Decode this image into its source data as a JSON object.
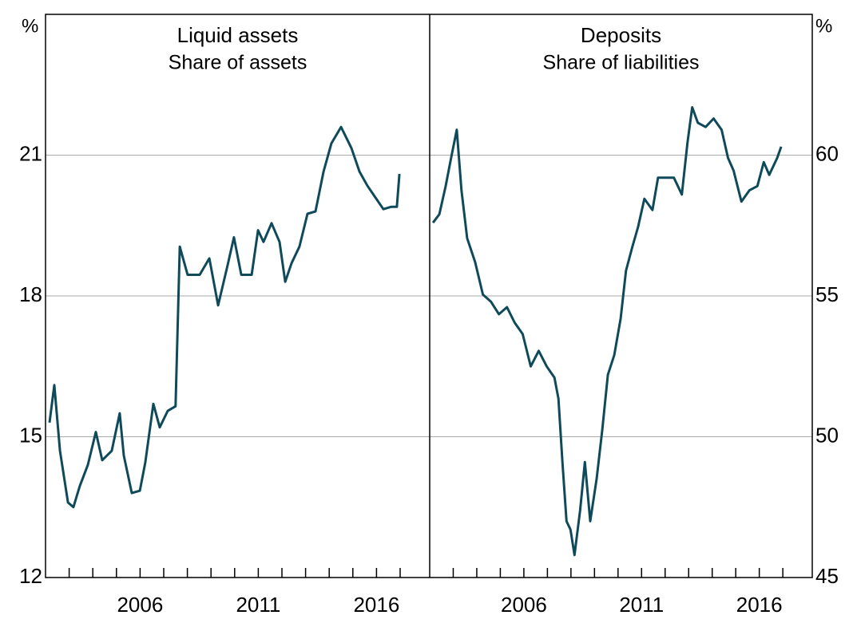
{
  "chart_data": [
    {
      "type": "line",
      "title": "Liquid assets",
      "subtitle": "Share of assets",
      "y_unit": "%",
      "yaxis_side": "left",
      "color": "#0f4a5a",
      "grid": true,
      "xlim": [
        2002,
        2018.25
      ],
      "xticks": [
        2006,
        2011,
        2016
      ],
      "xminor_ticks": [
        2003,
        2004,
        2005,
        2006,
        2007,
        2008,
        2009,
        2010,
        2011,
        2012,
        2013,
        2014,
        2015,
        2016,
        2017
      ],
      "ylim": [
        12,
        24
      ],
      "yticks": [
        12,
        15,
        18,
        21
      ],
      "x": [
        2002.17,
        2002.37,
        2002.61,
        2002.95,
        2003.18,
        2003.45,
        2003.79,
        2004.13,
        2004.4,
        2004.8,
        2005.14,
        2005.31,
        2005.65,
        2005.99,
        2006.22,
        2006.56,
        2006.83,
        2007.17,
        2007.5,
        2007.68,
        2008.01,
        2008.52,
        2008.93,
        2009.3,
        2009.7,
        2009.97,
        2010.28,
        2010.72,
        2010.99,
        2011.22,
        2011.56,
        2011.9,
        2012.14,
        2012.41,
        2012.74,
        2013.08,
        2013.42,
        2013.76,
        2014.09,
        2014.5,
        2014.94,
        2015.28,
        2015.61,
        2015.95,
        2016.29,
        2016.63,
        2016.86,
        2016.97
      ],
      "values": [
        15.3,
        16.1,
        14.7,
        13.6,
        13.5,
        13.95,
        14.4,
        15.1,
        14.5,
        14.7,
        15.5,
        14.6,
        13.8,
        13.85,
        14.45,
        15.7,
        15.2,
        15.55,
        15.65,
        19.05,
        18.45,
        18.45,
        18.8,
        17.8,
        18.65,
        19.25,
        18.45,
        18.45,
        19.4,
        19.15,
        19.55,
        19.15,
        18.3,
        18.7,
        19.05,
        19.75,
        19.8,
        20.65,
        21.25,
        21.6,
        21.15,
        20.65,
        20.35,
        20.1,
        19.85,
        19.9,
        19.9,
        20.6
      ]
    },
    {
      "type": "line",
      "title": "Deposits",
      "subtitle": "Share of liabilities",
      "y_unit": "%",
      "yaxis_side": "right",
      "color": "#0f4a5a",
      "grid": true,
      "xlim": [
        2002,
        2018.25
      ],
      "xticks": [
        2006,
        2011,
        2016
      ],
      "xminor_ticks": [
        2003,
        2004,
        2005,
        2006,
        2007,
        2008,
        2009,
        2010,
        2011,
        2012,
        2013,
        2014,
        2015,
        2016,
        2017
      ],
      "ylim": [
        45,
        65
      ],
      "yticks": [
        45,
        50,
        55,
        60
      ],
      "x": [
        2002.14,
        2002.41,
        2002.68,
        2002.91,
        2003.15,
        2003.35,
        2003.59,
        2003.93,
        2004.26,
        2004.6,
        2004.94,
        2005.28,
        2005.61,
        2005.95,
        2006.29,
        2006.63,
        2006.97,
        2007.3,
        2007.47,
        2007.64,
        2007.81,
        2007.98,
        2008.15,
        2008.39,
        2008.59,
        2008.82,
        2009.09,
        2009.33,
        2009.57,
        2009.84,
        2010.11,
        2010.34,
        2010.61,
        2010.85,
        2011.12,
        2011.46,
        2011.7,
        2012.03,
        2012.37,
        2012.71,
        2012.95,
        2013.15,
        2013.39,
        2013.72,
        2014.06,
        2014.4,
        2014.67,
        2014.91,
        2015.24,
        2015.58,
        2015.92,
        2016.19,
        2016.42,
        2016.76,
        2016.93
      ],
      "values": [
        57.6,
        57.9,
        58.9,
        59.9,
        60.9,
        58.75,
        57.05,
        56.2,
        55.05,
        54.8,
        54.35,
        54.6,
        54.05,
        53.65,
        52.5,
        53.05,
        52.5,
        52.1,
        51.35,
        49.1,
        47.0,
        46.7,
        45.8,
        47.4,
        49.1,
        47.0,
        48.5,
        50.25,
        52.2,
        52.9,
        54.2,
        55.9,
        56.75,
        57.45,
        58.45,
        58.05,
        59.2,
        59.2,
        59.2,
        58.6,
        60.45,
        61.7,
        61.15,
        61.0,
        61.3,
        60.9,
        59.9,
        59.45,
        58.35,
        58.75,
        58.9,
        59.75,
        59.3,
        59.9,
        60.3
      ]
    }
  ]
}
